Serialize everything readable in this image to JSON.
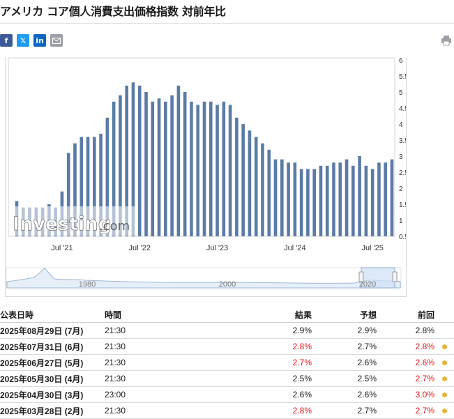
{
  "title": "アメリカ コア個人消費支出価格指数 対前年比",
  "share": {
    "facebook": "f",
    "x": "𝕏",
    "linkedin": "in",
    "email_icon": "email-icon",
    "print_icon": "print-icon"
  },
  "chart_data": {
    "type": "bar",
    "series_color": "#5b7ba5",
    "ylim": [
      0.5,
      6
    ],
    "y_ticks": [
      "6",
      "5.5",
      "5",
      "4.5",
      "4",
      "3.5",
      "3",
      "2.5",
      "2",
      "1.5",
      "1",
      "0.5"
    ],
    "x_tick_labels": [
      "Jul '21",
      "Jul '22",
      "Jul '23",
      "Jul '24",
      "Jul '25"
    ],
    "x_tick_indices": [
      7,
      19,
      31,
      43,
      55
    ],
    "values": [
      1.6,
      1.4,
      1.4,
      1.4,
      1.4,
      1.5,
      1.4,
      1.9,
      3.1,
      3.4,
      3.6,
      3.6,
      3.6,
      3.7,
      4.2,
      4.7,
      4.9,
      5.2,
      5.3,
      5.2,
      5.0,
      4.7,
      4.8,
      4.7,
      4.9,
      5.2,
      5.0,
      4.7,
      4.6,
      4.7,
      4.7,
      4.6,
      4.7,
      4.6,
      4.2,
      4.0,
      3.8,
      3.6,
      3.4,
      3.2,
      2.9,
      2.9,
      2.8,
      2.8,
      2.6,
      2.6,
      2.6,
      2.7,
      2.7,
      2.8,
      2.8,
      2.9,
      2.7,
      3.0,
      2.7,
      2.6,
      2.8,
      2.8,
      2.9
    ],
    "navigator_labels": [
      "1980",
      "2000",
      "2020"
    ],
    "watermark": "Investing",
    "watermark_suffix": ".com"
  },
  "table": {
    "headers": {
      "date": "公表日時",
      "time": "時間",
      "actual": "結果",
      "forecast": "予想",
      "previous": "前回"
    },
    "rows": [
      {
        "date": "2025年08月29日 (7月)",
        "time": "21:30",
        "actual": "2.9%",
        "actual_color": "#1a1a1a",
        "forecast": "2.9%",
        "previous": "2.8%",
        "previous_color": "#1a1a1a",
        "dot": false
      },
      {
        "date": "2025年07月31日 (6月)",
        "time": "21:30",
        "actual": "2.8%",
        "actual_color": "#e0161a",
        "forecast": "2.7%",
        "previous": "2.8%",
        "previous_color": "#e0161a",
        "dot": true
      },
      {
        "date": "2025年06月27日 (5月)",
        "time": "21:30",
        "actual": "2.7%",
        "actual_color": "#e0161a",
        "forecast": "2.6%",
        "previous": "2.6%",
        "previous_color": "#e0161a",
        "dot": true
      },
      {
        "date": "2025年05月30日 (4月)",
        "time": "21:30",
        "actual": "2.5%",
        "actual_color": "#1a1a1a",
        "forecast": "2.5%",
        "previous": "2.7%",
        "previous_color": "#e0161a",
        "dot": true
      },
      {
        "date": "2025年04月30日 (3月)",
        "time": "23:00",
        "actual": "2.6%",
        "actual_color": "#1a1a1a",
        "forecast": "2.6%",
        "previous": "3.0%",
        "previous_color": "#e0161a",
        "dot": true
      },
      {
        "date": "2025年03月28日 (2月)",
        "time": "21:30",
        "actual": "2.8%",
        "actual_color": "#e0161a",
        "forecast": "2.7%",
        "previous": "2.7%",
        "previous_color": "#e0161a",
        "dot": true
      }
    ]
  }
}
